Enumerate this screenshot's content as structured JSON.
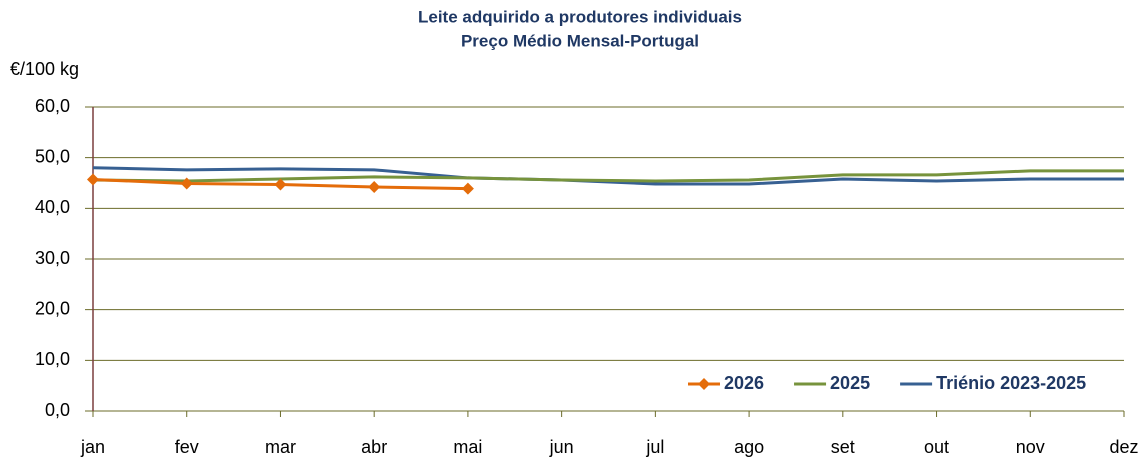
{
  "chart_data": {
    "type": "line",
    "title": "Leite adquirido a produtores individuais",
    "subtitle": "Preço Médio Mensal-Portugal",
    "y_label": "€/100 kg",
    "categories": [
      "jan",
      "fev",
      "mar",
      "abr",
      "mai",
      "jun",
      "jul",
      "ago",
      "set",
      "out",
      "nov",
      "dez"
    ],
    "series": [
      {
        "name": "2026",
        "color": "#e46c0a",
        "marker": "diamond",
        "values": [
          45.7,
          44.9,
          44.7,
          44.2,
          43.9,
          null,
          null,
          null,
          null,
          null,
          null,
          null
        ]
      },
      {
        "name": "2025",
        "color": "#77933c",
        "values": [
          45.6,
          45.4,
          45.8,
          46.2,
          46.0,
          45.6,
          45.4,
          45.6,
          46.6,
          46.6,
          47.4,
          47.4
        ]
      },
      {
        "name": "Triénio 2023-2025",
        "color": "#376092",
        "values": [
          48.0,
          47.6,
          47.8,
          47.6,
          46.0,
          45.6,
          44.8,
          44.8,
          45.8,
          45.4,
          45.8,
          45.8
        ]
      }
    ],
    "ylim": [
      0,
      60
    ],
    "yticks": [
      {
        "value": 0,
        "label": "0,0"
      },
      {
        "value": 10,
        "label": "10,0"
      },
      {
        "value": 20,
        "label": "20,0"
      },
      {
        "value": 30,
        "label": "30,0"
      },
      {
        "value": 40,
        "label": "40,0"
      },
      {
        "value": 50,
        "label": "50,0"
      },
      {
        "value": 60,
        "label": "60,0"
      }
    ],
    "grid": true,
    "legend": "bottom-right"
  }
}
